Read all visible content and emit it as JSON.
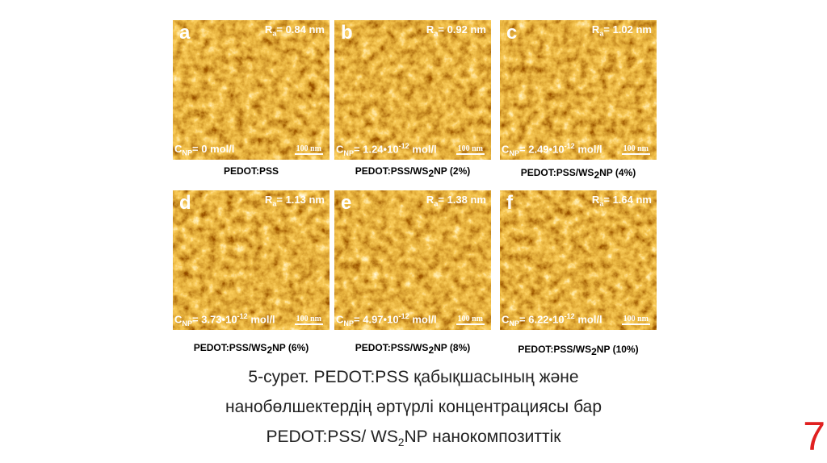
{
  "panels": [
    {
      "letter": "a",
      "ra": {
        "sym": "R",
        "sub": "a",
        "text": "= 0.84 nm"
      },
      "cnp": {
        "sym": "C",
        "sub": "NP",
        "text": "= 0 mol/l"
      },
      "scale": "100 nm",
      "caption": {
        "pre": "PEDOT:PSS"
      }
    },
    {
      "letter": "b",
      "ra": {
        "sym": "R",
        "sub": "a",
        "text": "= 0.92 nm"
      },
      "cnp": {
        "sym": "C",
        "sub": "NP",
        "text": "= 1.24•10",
        "exp": "-12",
        "unit": " mol/l"
      },
      "scale": "100 nm",
      "caption": {
        "pre": "PEDOT:PSS/WS",
        "sub": "2",
        "post": "NP (2%)"
      }
    },
    {
      "letter": "c",
      "ra": {
        "sym": "R",
        "sub": "a",
        "text": "= 1.02 nm"
      },
      "cnp": {
        "sym": "C",
        "sub": "NP",
        "text": "= 2.49•10",
        "exp": "-12",
        "unit": " mol/l"
      },
      "scale": "100 nm",
      "caption": {
        "pre": "PEDOT:PSS/WS",
        "sub": "2",
        "post": "NP (4%)"
      }
    },
    {
      "letter": "d",
      "ra": {
        "sym": "R",
        "sub": "a",
        "text": "= 1.13 nm"
      },
      "cnp": {
        "sym": "C",
        "sub": "NP",
        "text": "= 3.73•10",
        "exp": "-12",
        "unit": " mol/l"
      },
      "scale": "100 nm",
      "caption": {
        "pre": "PEDOT:PSS/WS",
        "sub": "2",
        "post": "NP (6%)"
      }
    },
    {
      "letter": "e",
      "ra": {
        "sym": "R",
        "sub": "a",
        "text": "= 1.38 nm"
      },
      "cnp": {
        "sym": "C",
        "sub": "NP",
        "text": "= 4.97•10",
        "exp": "-12",
        "unit": " mol/l"
      },
      "scale": "100 nm",
      "caption": {
        "pre": "PEDOT:PSS/WS",
        "sub": "2",
        "post": "NP (8%)"
      }
    },
    {
      "letter": "f",
      "ra": {
        "sym": "R",
        "sub": "a",
        "text": "= 1.64 nm"
      },
      "cnp": {
        "sym": "C",
        "sub": "NP",
        "text": "= 6.22•10",
        "exp": "-12",
        "unit": " mol/l"
      },
      "scale": "100 nm",
      "caption": {
        "pre": "PEDOT:PSS/WS",
        "sub": "2",
        "post": "NP (10%)"
      }
    }
  ],
  "figure_caption": {
    "line1": "5-сурет. PEDOT:PSS қабықшасының және",
    "line2": "нанобөлшектердің әртүрлі концентрациясы бар",
    "line3_pre": "PEDOT:PSS/ WS",
    "line3_sub": "2",
    "line3_post": "NP нанокомпозиттік"
  },
  "page_number": "7"
}
